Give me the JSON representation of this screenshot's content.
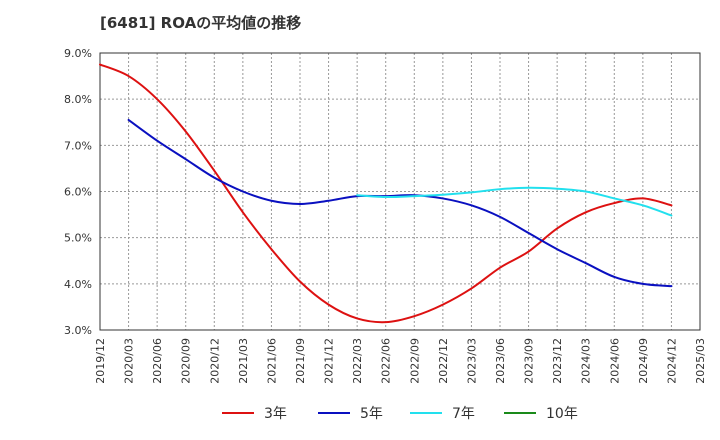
{
  "chart_data": {
    "type": "line",
    "title": "[6481]  ROAの平均値の推移",
    "xlabel": "",
    "ylabel": "",
    "x_ticks": [
      "2019/12",
      "2020/03",
      "2020/06",
      "2020/09",
      "2020/12",
      "2021/03",
      "2021/06",
      "2021/09",
      "2021/12",
      "2022/03",
      "2022/06",
      "2022/09",
      "2022/12",
      "2023/03",
      "2023/06",
      "2023/09",
      "2023/12",
      "2024/03",
      "2024/06",
      "2024/09",
      "2024/12",
      "2025/03"
    ],
    "y_ticks": [
      "3.0%",
      "4.0%",
      "5.0%",
      "6.0%",
      "7.0%",
      "8.0%",
      "9.0%"
    ],
    "ylim": [
      3.0,
      9.0
    ],
    "y_unit": "%",
    "grid": true,
    "legend_position": "bottom",
    "series": [
      {
        "name": "3年",
        "color": "#dd1111",
        "x": [
          "2019/12",
          "2020/03",
          "2020/06",
          "2020/09",
          "2020/12",
          "2021/03",
          "2021/06",
          "2021/09",
          "2021/12",
          "2022/03",
          "2022/06",
          "2022/09",
          "2022/12",
          "2023/03",
          "2023/06",
          "2023/09",
          "2023/12",
          "2024/03",
          "2024/06",
          "2024/09",
          "2024/12"
        ],
        "values": [
          8.75,
          8.5,
          8.0,
          7.3,
          6.45,
          5.55,
          4.75,
          4.05,
          3.55,
          3.25,
          3.17,
          3.3,
          3.55,
          3.9,
          4.35,
          4.7,
          5.2,
          5.55,
          5.75,
          5.85,
          5.7
        ]
      },
      {
        "name": "5年",
        "color": "#0a10c0",
        "x": [
          "2020/03",
          "2020/06",
          "2020/09",
          "2020/12",
          "2021/03",
          "2021/06",
          "2021/09",
          "2021/12",
          "2022/03",
          "2022/06",
          "2022/09",
          "2022/12",
          "2023/03",
          "2023/06",
          "2023/09",
          "2023/12",
          "2024/03",
          "2024/06",
          "2024/09",
          "2024/12"
        ],
        "values": [
          7.55,
          7.1,
          6.7,
          6.3,
          6.0,
          5.8,
          5.73,
          5.8,
          5.9,
          5.9,
          5.92,
          5.85,
          5.7,
          5.45,
          5.1,
          4.75,
          4.45,
          4.15,
          4.0,
          3.95
        ]
      },
      {
        "name": "7年",
        "color": "#22e0ee",
        "x": [
          "2022/03",
          "2022/06",
          "2022/09",
          "2022/12",
          "2023/03",
          "2023/06",
          "2023/09",
          "2023/12",
          "2024/03",
          "2024/06",
          "2024/09",
          "2024/12"
        ],
        "values": [
          5.92,
          5.88,
          5.9,
          5.93,
          5.98,
          6.05,
          6.08,
          6.06,
          6.0,
          5.85,
          5.7,
          5.48
        ]
      },
      {
        "name": "10年",
        "color": "#1a8a1a",
        "x": [],
        "values": []
      }
    ]
  }
}
